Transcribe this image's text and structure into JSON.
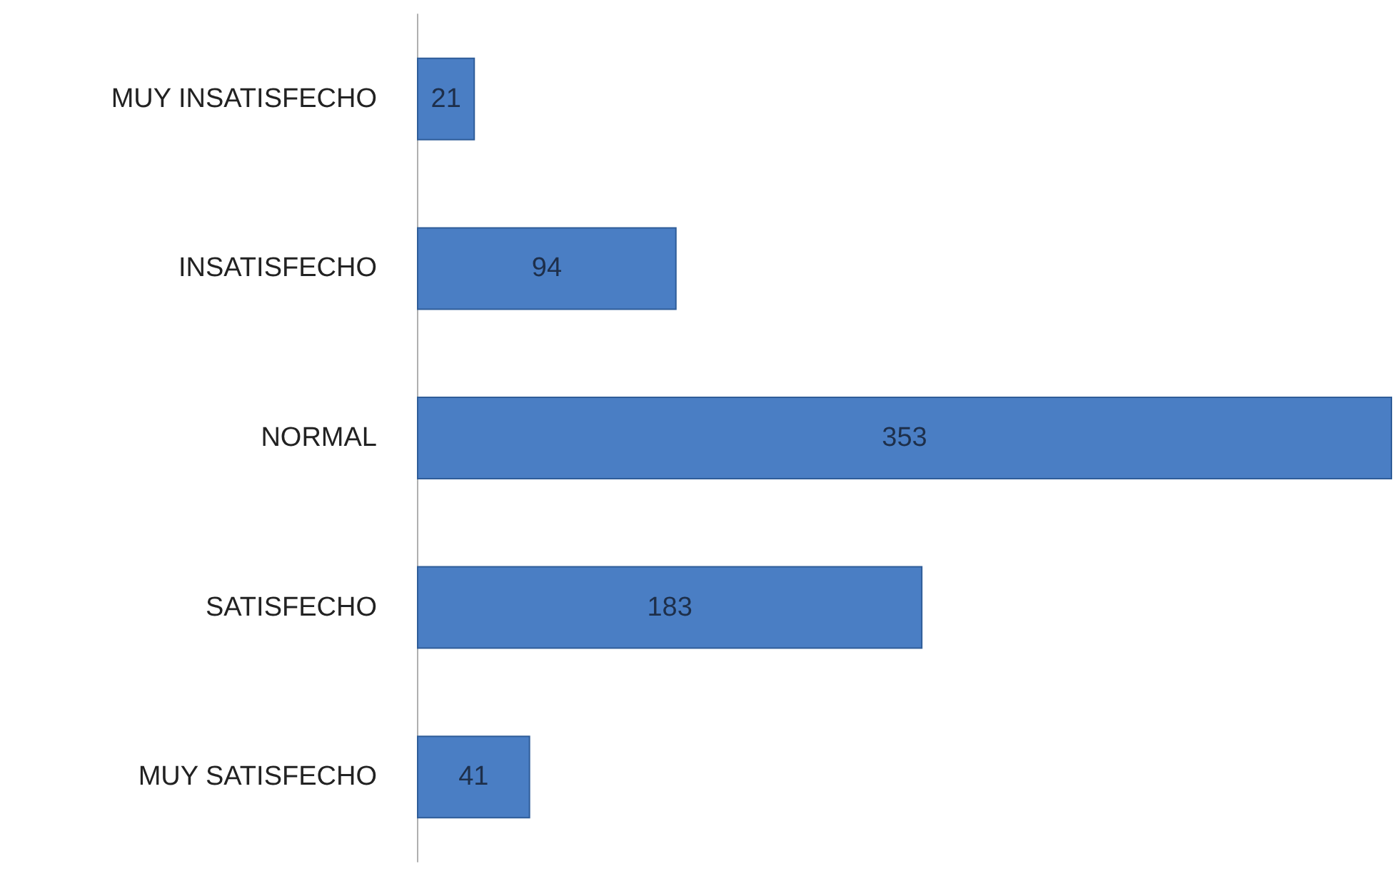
{
  "chart_data": {
    "type": "bar",
    "orientation": "horizontal",
    "categories": [
      "MUY INSATISFECHO",
      "INSATISFECHO",
      "NORMAL",
      "SATISFECHO",
      "MUY SATISFECHO"
    ],
    "values": [
      21,
      94,
      353,
      183,
      41
    ],
    "color": "#4a7ec4",
    "data_labels": true
  }
}
